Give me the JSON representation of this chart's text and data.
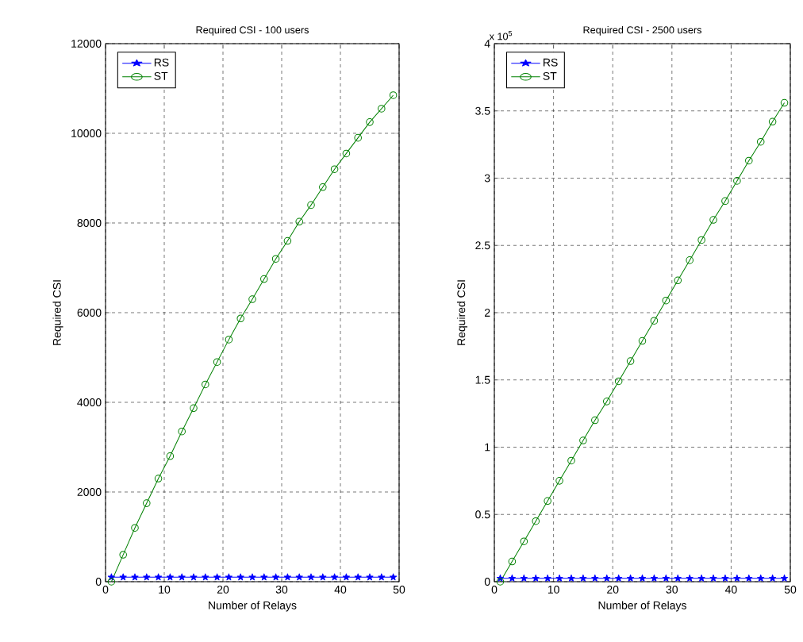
{
  "chart_data": [
    {
      "type": "line",
      "title": "Required CSI - 100 users",
      "xlabel": "Number of Relays",
      "ylabel": "Required CSI",
      "x": [
        1,
        3,
        5,
        7,
        9,
        11,
        13,
        15,
        17,
        19,
        21,
        23,
        25,
        27,
        29,
        31,
        33,
        35,
        37,
        39,
        41,
        43,
        45,
        47,
        49
      ],
      "series": [
        {
          "name": "RS",
          "color": "#0000ff",
          "marker": "star",
          "values": [
            100,
            100,
            100,
            100,
            100,
            100,
            100,
            100,
            100,
            100,
            100,
            100,
            100,
            100,
            100,
            100,
            100,
            100,
            100,
            100,
            100,
            100,
            100,
            100,
            100
          ]
        },
        {
          "name": "ST",
          "color": "#008000",
          "marker": "circle",
          "values": [
            0,
            600,
            1200,
            1750,
            2300,
            2800,
            3350,
            3870,
            4400,
            4900,
            5400,
            5870,
            6300,
            6750,
            7200,
            7600,
            8030,
            8400,
            8800,
            9200,
            9550,
            9900,
            10250,
            10550,
            10850
          ]
        }
      ],
      "xlim": [
        0,
        50
      ],
      "xticks": [
        0,
        10,
        20,
        30,
        40,
        50
      ],
      "ylim": [
        0,
        12000
      ],
      "yticks": [
        0,
        2000,
        4000,
        6000,
        8000,
        10000,
        12000
      ],
      "grid": true,
      "legend": "top left",
      "line_style": "solid"
    },
    {
      "type": "line",
      "title": "Required CSI - 2500 users",
      "xlabel": "Number of Relays",
      "ylabel": "Required CSI",
      "annotations": [
        "x 10$^{5}$"
      ],
      "x": [
        1,
        3,
        5,
        7,
        9,
        11,
        13,
        15,
        17,
        19,
        21,
        23,
        25,
        27,
        29,
        31,
        33,
        35,
        37,
        39,
        41,
        43,
        45,
        47,
        49
      ],
      "series": [
        {
          "name": "RS",
          "color": "#0000ff",
          "marker": "star",
          "values": [
            0.025,
            0.025,
            0.025,
            0.025,
            0.025,
            0.025,
            0.025,
            0.025,
            0.025,
            0.025,
            0.025,
            0.025,
            0.025,
            0.025,
            0.025,
            0.025,
            0.025,
            0.025,
            0.025,
            0.025,
            0.025,
            0.025,
            0.025,
            0.025,
            0.025
          ]
        },
        {
          "name": "ST",
          "color": "#008000",
          "marker": "circle",
          "values": [
            0,
            0.15,
            0.3,
            0.45,
            0.6,
            0.75,
            0.9,
            1.05,
            1.2,
            1.34,
            1.49,
            1.64,
            1.79,
            1.94,
            2.09,
            2.24,
            2.39,
            2.54,
            2.69,
            2.83,
            2.98,
            3.13,
            3.27,
            3.42,
            3.56
          ]
        }
      ],
      "xlim": [
        0,
        50
      ],
      "xticks": [
        0,
        10,
        20,
        30,
        40,
        50
      ],
      "ylim": [
        0,
        4
      ],
      "yticks": [
        0,
        0.5,
        1,
        1.5,
        2,
        2.5,
        3,
        3.5,
        4
      ],
      "grid": true,
      "legend": "top left",
      "line_style": "solid"
    }
  ]
}
